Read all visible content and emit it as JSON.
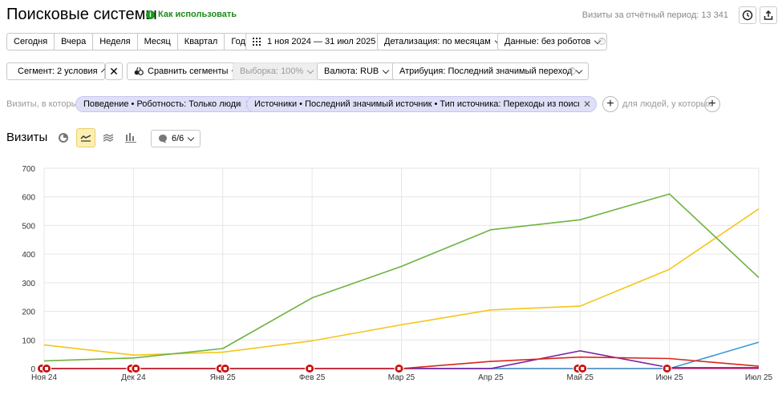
{
  "header": {
    "title": "Поисковые системы",
    "howto": "Как использовать",
    "visits_period": "Визиты за отчётный период: 13 341"
  },
  "periods": [
    "Сегодня",
    "Вчера",
    "Неделя",
    "Месяц",
    "Квартал",
    "Год"
  ],
  "toolbar": {
    "date_range": "1 ноя 2024 — 31 июл 2025",
    "detail": "Детализация: по месяцам",
    "data": "Данные: без роботов",
    "segment": "Сегмент: 2 условия",
    "compare": "Сравнить сегменты",
    "sample": "Выборка: 100%",
    "currency": "Валюта: RUB",
    "attribution": "Атрибуция: Последний значимый переход"
  },
  "filters": {
    "prefix": "Визиты, в которых",
    "chip1": "Поведение • Роботность: Только люди",
    "and": "и",
    "chip2": "Источники • Последний значимый источник • Тип источника: Переходы из поисковых систем",
    "people": "для людей, у которых"
  },
  "chart_header": {
    "title": "Визиты",
    "series_count": "6/6"
  },
  "chart_data": {
    "type": "line",
    "categories": [
      "Ноя 24",
      "Дек 24",
      "Янв 25",
      "Фев 25",
      "Мар 25",
      "Апр 25",
      "Май 25",
      "Июн 25",
      "Июл 25"
    ],
    "ylim": [
      0,
      700
    ],
    "yticks": [
      "0",
      "100",
      "200",
      "300",
      "400",
      "500",
      "600",
      "700"
    ],
    "grid": true,
    "series": [
      {
        "color": "#6db33f",
        "values": [
          27,
          37,
          70,
          247,
          357,
          485,
          520,
          610,
          318
        ]
      },
      {
        "color": "#f5c518",
        "values": [
          83,
          47,
          57,
          97,
          153,
          205,
          218,
          347,
          558
        ]
      },
      {
        "color": "#d9261c",
        "values": [
          0,
          0,
          0,
          0,
          0,
          25,
          40,
          35,
          8
        ]
      },
      {
        "color": "#7a1fa2",
        "values": [
          0,
          0,
          0,
          0,
          0,
          0,
          62,
          3,
          3
        ]
      },
      {
        "color": "#3b9bd6",
        "values": [
          0,
          0,
          0,
          0,
          0,
          0,
          0,
          0,
          92
        ]
      },
      {
        "color": "#e8475b",
        "values": [
          0,
          0,
          0,
          0,
          0,
          0,
          0,
          0,
          0
        ]
      }
    ],
    "annotation_marker_counts": [
      2,
      2,
      2,
      1,
      1,
      0,
      2,
      1,
      0
    ]
  }
}
